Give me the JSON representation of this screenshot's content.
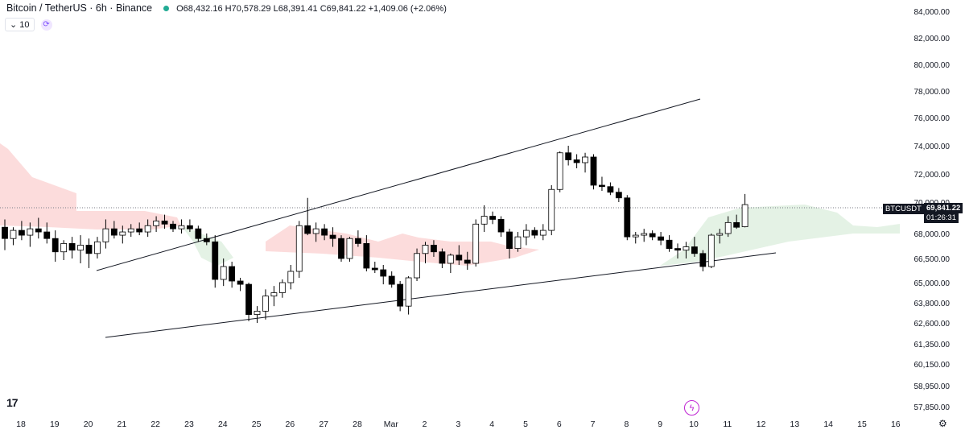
{
  "header": {
    "title": "Bitcoin / TetherUS · 6h · Binance",
    "ohlc": "O68,432.16 H70,578.29 L68,391.41 C69,841.22 +1,409.06 (+2.06%)",
    "indicator_value": "10"
  },
  "price_tag": {
    "symbol": "BTCUSDT",
    "price": "69,841.22",
    "countdown": "01:26:31"
  },
  "colors": {
    "up_fill": "#ffffff",
    "down_fill": "#000000",
    "wick": "#000000",
    "cloud_bear": "#fbd6d6",
    "cloud_bull": "#dff0e1",
    "trendline": "#131722",
    "grid_text": "#131722"
  },
  "icons": {
    "logo": "tradingview-logo-icon",
    "settings": "gear-icon",
    "alert": "lightning-icon",
    "refresh": "refresh-icon",
    "collapse": "chevron-down-icon"
  },
  "chart_data": {
    "type": "candlestick",
    "symbol": "BTCUSDT",
    "interval": "6h",
    "y_axis_labels": [
      "84,000.00",
      "82,000.00",
      "80,000.00",
      "78,000.00",
      "76,000.00",
      "74,000.00",
      "72,000.00",
      "70,000.00",
      "68,000.00",
      "66,500.00",
      "65,000.00",
      "63,800.00",
      "62,600.00",
      "61,350.00",
      "60,150.00",
      "58,950.00",
      "57,850.00"
    ],
    "y_axis_values": [
      84000,
      82000,
      80000,
      78000,
      76000,
      74000,
      72000,
      70000,
      68000,
      66500,
      65000,
      63800,
      62600,
      61350,
      60150,
      58950,
      57850
    ],
    "x_axis_labels": [
      "18",
      "19",
      "20",
      "21",
      "22",
      "23",
      "24",
      "25",
      "26",
      "27",
      "28",
      "Mar",
      "2",
      "3",
      "4",
      "5",
      "6",
      "7",
      "8",
      "9",
      "10",
      "11",
      "12",
      "13",
      "14",
      "15",
      "16"
    ],
    "current_price": 69841.22,
    "candles": [
      [
        68400,
        68900,
        67000,
        67700
      ],
      [
        67700,
        68400,
        67300,
        68200
      ],
      [
        68200,
        68800,
        67600,
        67900
      ],
      [
        67900,
        68700,
        67200,
        68300
      ],
      [
        68300,
        69000,
        67700,
        68100
      ],
      [
        68100,
        68700,
        67400,
        67700
      ],
      [
        67700,
        68200,
        66300,
        66900
      ],
      [
        66900,
        67600,
        66400,
        67400
      ],
      [
        67400,
        67800,
        66500,
        67000
      ],
      [
        67000,
        67900,
        66200,
        67300
      ],
      [
        67300,
        67700,
        65900,
        66800
      ],
      [
        66800,
        67800,
        66500,
        67500
      ],
      [
        67500,
        68900,
        67100,
        68300
      ],
      [
        68300,
        68800,
        67700,
        67900
      ],
      [
        67900,
        68500,
        67400,
        68100
      ],
      [
        68100,
        68600,
        67800,
        68300
      ],
      [
        68300,
        68700,
        67900,
        68100
      ],
      [
        68100,
        68900,
        67800,
        68500
      ],
      [
        68500,
        69100,
        68100,
        68800
      ],
      [
        68800,
        69200,
        68300,
        68600
      ],
      [
        68600,
        68800,
        68100,
        68300
      ],
      [
        68300,
        68900,
        68000,
        68500
      ],
      [
        68500,
        68900,
        68100,
        68300
      ],
      [
        68300,
        68500,
        67500,
        67700
      ],
      [
        67700,
        68000,
        67300,
        67500
      ],
      [
        67500,
        67900,
        64700,
        65200
      ],
      [
        65200,
        66500,
        64800,
        66000
      ],
      [
        66000,
        66300,
        64700,
        65100
      ],
      [
        65100,
        65300,
        64500,
        64900
      ],
      [
        64900,
        65000,
        62700,
        63100
      ],
      [
        63100,
        63600,
        62600,
        63300
      ],
      [
        63300,
        64600,
        62800,
        64200
      ],
      [
        64200,
        64800,
        63600,
        64400
      ],
      [
        64400,
        65200,
        64100,
        65000
      ],
      [
        65000,
        66100,
        64600,
        65700
      ],
      [
        65700,
        68800,
        65300,
        68500
      ],
      [
        68500,
        70300,
        67900,
        68000
      ],
      [
        68000,
        68700,
        67500,
        68300
      ],
      [
        68300,
        68600,
        67600,
        67900
      ],
      [
        67900,
        68400,
        67200,
        67700
      ],
      [
        67700,
        67900,
        66300,
        66500
      ],
      [
        66500,
        67800,
        66300,
        67700
      ],
      [
        67700,
        68200,
        67200,
        67400
      ],
      [
        67400,
        67900,
        65700,
        65900
      ],
      [
        65900,
        66300,
        65600,
        65800
      ],
      [
        65800,
        66100,
        64900,
        65400
      ],
      [
        65400,
        65700,
        64700,
        64900
      ],
      [
        64900,
        65100,
        63300,
        63600
      ],
      [
        63600,
        65400,
        63100,
        65300
      ],
      [
        65300,
        67100,
        65100,
        66800
      ],
      [
        66800,
        67500,
        66200,
        67300
      ],
      [
        67300,
        67600,
        66600,
        66900
      ],
      [
        66900,
        67100,
        65900,
        66200
      ],
      [
        66200,
        66800,
        65600,
        66700
      ],
      [
        66700,
        67300,
        66100,
        66400
      ],
      [
        66400,
        66900,
        65800,
        66200
      ],
      [
        66200,
        68900,
        66000,
        68600
      ],
      [
        68600,
        69800,
        68100,
        69100
      ],
      [
        69100,
        69400,
        68600,
        68900
      ],
      [
        68900,
        69100,
        67800,
        68100
      ],
      [
        68100,
        68300,
        66500,
        67100
      ],
      [
        67100,
        68100,
        66900,
        67800
      ],
      [
        67800,
        68600,
        67300,
        68200
      ],
      [
        68200,
        68400,
        67700,
        67900
      ],
      [
        67900,
        68600,
        67600,
        68200
      ],
      [
        68200,
        71200,
        67900,
        70900
      ],
      [
        70900,
        73600,
        70700,
        73500
      ],
      [
        73500,
        74000,
        72600,
        73000
      ],
      [
        73000,
        73400,
        72400,
        72800
      ],
      [
        72800,
        73500,
        72100,
        73200
      ],
      [
        73200,
        73400,
        70900,
        71200
      ],
      [
        71200,
        71800,
        70800,
        71100
      ],
      [
        71100,
        71400,
        70500,
        70700
      ],
      [
        70700,
        71000,
        70000,
        70300
      ],
      [
        70300,
        70500,
        67600,
        67800
      ],
      [
        67800,
        68100,
        67400,
        67900
      ],
      [
        67900,
        68300,
        67500,
        68000
      ],
      [
        68000,
        68200,
        67600,
        67800
      ],
      [
        67800,
        68100,
        67300,
        67600
      ],
      [
        67600,
        67900,
        66900,
        67100
      ],
      [
        67100,
        67400,
        66500,
        67000
      ],
      [
        67000,
        67500,
        66500,
        67200
      ],
      [
        67200,
        67800,
        66600,
        66800
      ],
      [
        66800,
        67000,
        65700,
        66000
      ],
      [
        66000,
        68000,
        65900,
        67900
      ],
      [
        67900,
        68300,
        67400,
        68000
      ],
      [
        68000,
        69100,
        67800,
        68700
      ],
      [
        68700,
        69200,
        68300,
        68400
      ],
      [
        68432.16,
        70578.29,
        68391.41,
        69841.22
      ]
    ],
    "trendlines": [
      {
        "name": "upper",
        "from": [
          "Feb 20",
          66200
        ],
        "to": [
          "Mar 11",
          77400
        ]
      },
      {
        "name": "lower",
        "from": [
          "Feb 20",
          61900
        ],
        "to": [
          "Mar 12",
          67200
        ]
      }
    ]
  }
}
